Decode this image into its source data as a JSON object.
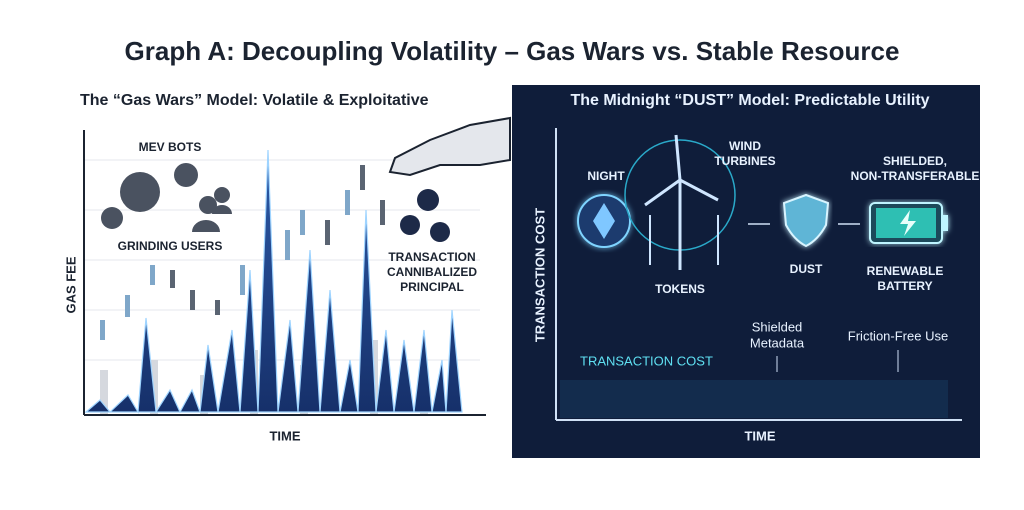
{
  "title": "Graph A: Decoupling Volatility – Gas Wars vs. Stable Resource",
  "left_panel": {
    "title": "The “Gas Wars” Model: Volatile & Exploitative",
    "labels": {
      "mev_bots": "MEV BOTS",
      "grinding_users": "GRINDING USERS",
      "transaction": [
        "TRANSACTION",
        "CANNIBALIZED",
        "PRINCIPAL"
      ]
    },
    "y_axis": "GAS FEE",
    "x_axis": "TIME"
  },
  "right_panel": {
    "title": "The Midnight “DUST” Model: Predictable Utility",
    "labels": {
      "night": "NIGHT",
      "wind_turbines": [
        "WIND",
        "TURBINES"
      ],
      "tokens": "TOKENS",
      "dust": "DUST",
      "shielded": [
        "SHIELDED,",
        "NON-TRANSFERABLE"
      ],
      "battery": [
        "RENEWABLE",
        "BATTERY"
      ],
      "line_label": "TRANSACTION COST",
      "shielded_metadata": [
        "Shielded",
        "Metadata"
      ],
      "friction_free": "Friction-Free Use"
    },
    "y_axis": "TRANSACTION COST",
    "x_axis": "TIME"
  }
}
